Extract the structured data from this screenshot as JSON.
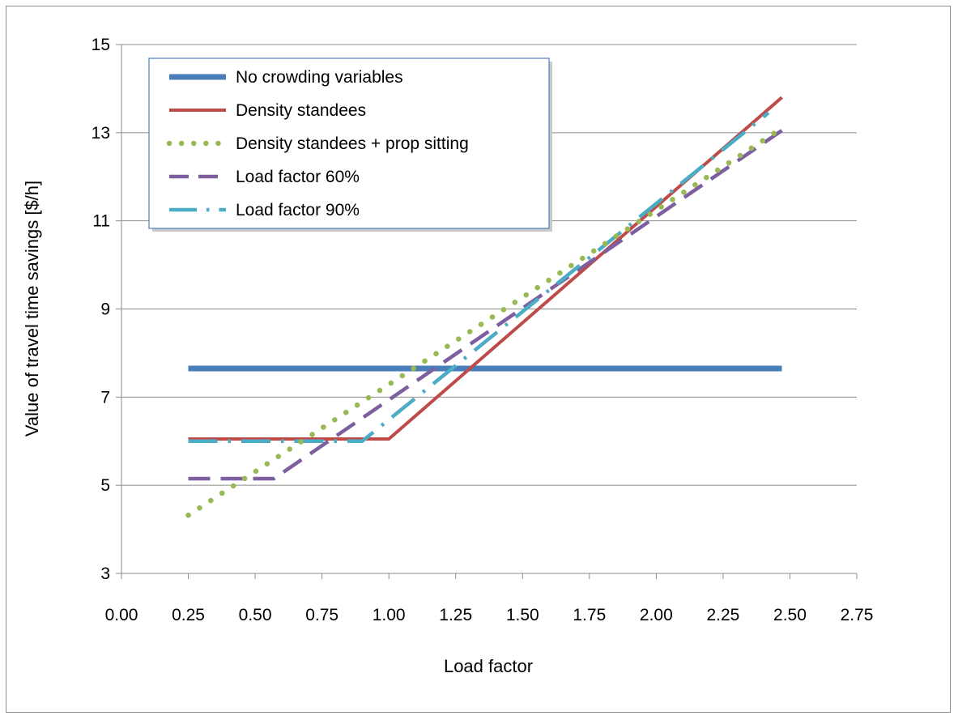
{
  "chart_data": {
    "type": "line",
    "title": "",
    "xlabel": "Load factor",
    "ylabel": "Value of travel time savings [$/h]",
    "xlim": [
      0,
      2.75
    ],
    "ylim": [
      3,
      15
    ],
    "x_ticks": [
      "0.00",
      "0.25",
      "0.50",
      "0.75",
      "1.00",
      "1.25",
      "1.50",
      "1.75",
      "2.00",
      "2.25",
      "2.50",
      "2.75"
    ],
    "y_ticks": [
      "3",
      "5",
      "7",
      "9",
      "11",
      "13",
      "15"
    ],
    "grid": "horizontal",
    "legend_position": "top-left",
    "series": [
      {
        "name": "No crowding variables",
        "color": "#4a7ebb",
        "style": "solid-thick",
        "points": [
          [
            0.25,
            7.65
          ],
          [
            2.47,
            7.65
          ]
        ]
      },
      {
        "name": "Density standees",
        "color": "#be4b48",
        "style": "solid",
        "points": [
          [
            0.25,
            6.05
          ],
          [
            1.0,
            6.05
          ],
          [
            2.47,
            13.8
          ]
        ]
      },
      {
        "name": "Density standees + prop sitting",
        "color": "#98b954",
        "style": "dotted",
        "points": [
          [
            0.25,
            4.32
          ],
          [
            2.47,
            13.1
          ]
        ]
      },
      {
        "name": "Load factor 60%",
        "color": "#7d5fa0",
        "style": "dashed",
        "points": [
          [
            0.25,
            5.15
          ],
          [
            0.57,
            5.15
          ],
          [
            2.47,
            13.05
          ]
        ]
      },
      {
        "name": "Load factor 90%",
        "color": "#4bacc6",
        "style": "dash-dot",
        "points": [
          [
            0.25,
            6.0
          ],
          [
            0.9,
            6.0
          ],
          [
            2.42,
            13.45
          ]
        ]
      }
    ]
  }
}
